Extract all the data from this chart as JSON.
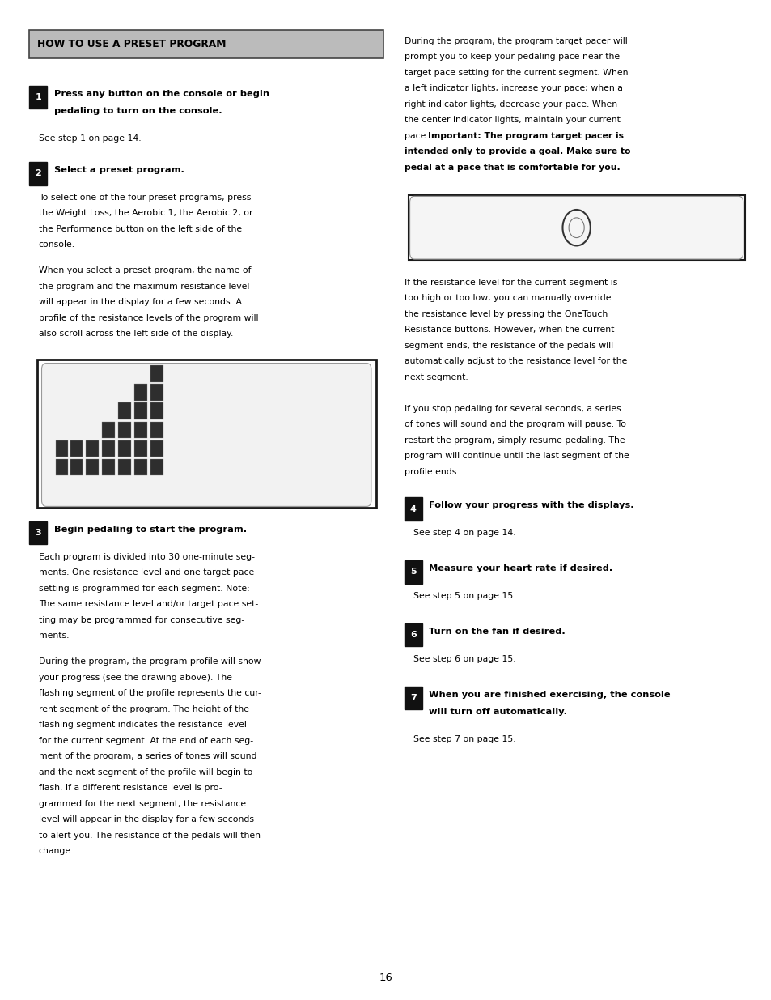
{
  "page_bg": "#ffffff",
  "page_num": "16",
  "header_text": "HOW TO USE A PRESET PROGRAM",
  "left": {
    "sec1_title": [
      "Press any button on the console or begin",
      "pedaling to turn on the console."
    ],
    "sec1_body": [
      "See step 1 on page 14."
    ],
    "sec2_title": [
      "Select a preset program."
    ],
    "sec2_body1": [
      "To select one of the four preset programs, press",
      "the Weight Loss, the Aerobic 1, the Aerobic 2, or",
      "the Performance button on the left side of the",
      "console."
    ],
    "sec2_body2": [
      "When you select a preset program, the name of",
      "the program and the maximum resistance level",
      "will appear in the display for a few seconds. A",
      "profile of the resistance levels of the program will",
      "also scroll across the left side of the display."
    ],
    "sec3_title": [
      "Begin pedaling to start the program."
    ],
    "sec3_body1": [
      "Each program is divided into 30 one-minute seg-",
      "ments. One resistance level and one target pace",
      "setting is programmed for each segment. Note:",
      "The same resistance level and/or target pace set-",
      "ting may be programmed for consecutive seg-",
      "ments."
    ],
    "sec3_body2": [
      "During the program, the program profile will show",
      "your progress (see the drawing above). The",
      "flashing segment of the profile represents the cur-",
      "rent segment of the program. The height of the",
      "flashing segment indicates the resistance level",
      "for the current segment. At the end of each seg-",
      "ment of the program, a series of tones will sound",
      "and the next segment of the profile will begin to",
      "flash. If a different resistance level is pro-",
      "grammed for the next segment, the resistance",
      "level will appear in the display for a few seconds",
      "to alert you. The resistance of the pedals will then",
      "change."
    ]
  },
  "right": {
    "top_normal": [
      "During the program, the program target pacer will",
      "prompt you to keep your pedaling pace near the",
      "target pace setting for the current segment. When",
      "a left indicator lights, increase your pace; when a",
      "right indicator lights, decrease your pace. When",
      "the center indicator lights, maintain your current"
    ],
    "top_mixed": "pace. ",
    "top_bold": [
      "Important: The program target pacer is",
      "intended only to provide a goal. Make sure to",
      "pedal at a pace that is comfortable for you."
    ],
    "mid": [
      "If the resistance level for the current segment is",
      "too high or too low, you can manually override",
      "the resistance level by pressing the OneTouch",
      "Resistance buttons. However, when the current",
      "segment ends, the resistance of the pedals will",
      "automatically adjust to the resistance level for the",
      "next segment.",
      "",
      "If you stop pedaling for several seconds, a series",
      "of tones will sound and the program will pause. To",
      "restart the program, simply resume pedaling. The",
      "program will continue until the last segment of the",
      "profile ends."
    ],
    "sec4_title": [
      "Follow your progress with the displays."
    ],
    "sec4_body": [
      "See step 4 on page 14."
    ],
    "sec5_title": [
      "Measure your heart rate if desired."
    ],
    "sec5_body": [
      "See step 5 on page 15."
    ],
    "sec6_title": [
      "Turn on the fan if desired."
    ],
    "sec6_body": [
      "See step 6 on page 15."
    ],
    "sec7_title": [
      "When you are finished exercising, the console",
      "will turn off automatically."
    ],
    "sec7_body": [
      "See step 7 on page 15."
    ]
  }
}
